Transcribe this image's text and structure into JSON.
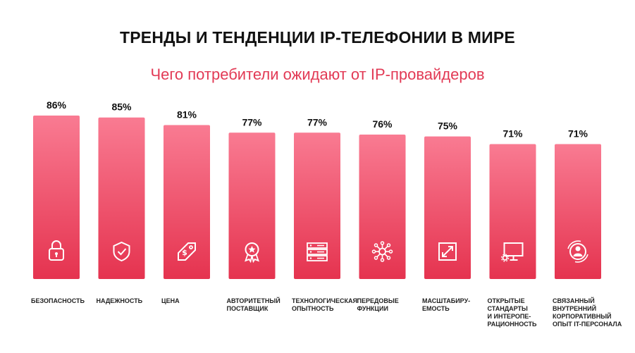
{
  "title": "ТРЕНДЫ И ТЕНДЕНЦИИ IP-ТЕЛЕФОНИИ В МИРЕ",
  "subtitle": "Чего потребители ожидают от IP-провайдеров",
  "colors": {
    "bar_top": "#f97b92",
    "bar_bottom": "#e5334f",
    "subtitle": "#e23a55"
  },
  "chart_data": {
    "type": "bar",
    "title": "ТРЕНДЫ И ТЕНДЕНЦИИ IP-ТЕЛЕФОНИИ В МИРЕ",
    "subtitle": "Чего потребители ожидают от IP-провайдеров",
    "xlabel": "",
    "ylabel": "",
    "ylim": [
      0,
      100
    ],
    "unit": "%",
    "categories": [
      "БЕЗОПАСНОСТЬ",
      "НАДЕЖНОСТЬ",
      "ЦЕНА",
      "АВТОРИТЕТНЫЙ\nПОСТАВЩИК",
      "ТЕХНОЛОГИЧЕСКАЯ\nОПЫТНОСТЬ",
      "ПЕРЕДОВЫЕ\nФУНКЦИИ",
      "МАСШТАБИРУ-\nЕМОСТЬ",
      "ОТКРЫТЫЕ\nСТАНДАРТЫ\nИ ИНТЕРОПЕ-\nРАЦИОННОСТЬ",
      "СВЯЗАННЫЙ\nВНУТРЕННИЙ\nКОРПОРАТИВНЫЙ\nОПЫТ IT-ПЕРСОНАЛА"
    ],
    "values": [
      86,
      85,
      81,
      77,
      77,
      76,
      75,
      71,
      71
    ],
    "value_labels": [
      "86%",
      "85%",
      "81%",
      "77%",
      "77%",
      "76%",
      "75%",
      "71%",
      "71%"
    ],
    "icons": [
      "lock-icon",
      "shield-check-icon",
      "price-tag-icon",
      "award-badge-icon",
      "server-icon",
      "network-icon",
      "expand-icon",
      "monitor-settings-icon",
      "user-circle-icon"
    ],
    "grid": false,
    "legend": "none"
  }
}
